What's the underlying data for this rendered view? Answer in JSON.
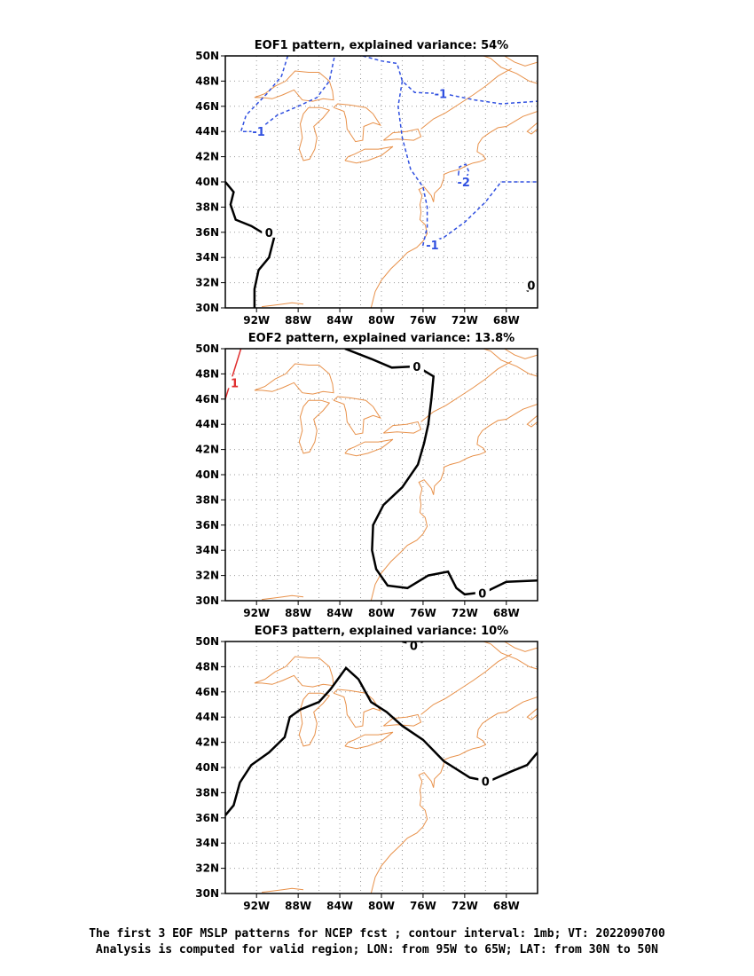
{
  "panels": [
    {
      "title": "EOF1 pattern, explained variance: 54%",
      "contour_labels": [
        {
          "text": "-1",
          "color": "#3050e0"
        },
        {
          "text": "-1",
          "color": "#3050e0"
        },
        {
          "text": "-2",
          "color": "#3050e0"
        },
        {
          "text": "-1",
          "color": "#3050e0"
        },
        {
          "text": "0",
          "color": "#000000"
        },
        {
          "text": "0",
          "color": "#000000"
        }
      ]
    },
    {
      "title": "EOF2 pattern, explained variance: 13.8%",
      "contour_labels": [
        {
          "text": "1",
          "color": "#e03030"
        },
        {
          "text": "0",
          "color": "#000000"
        },
        {
          "text": "0",
          "color": "#000000"
        }
      ]
    },
    {
      "title": "EOF3 pattern, explained variance: 10%",
      "contour_labels": [
        {
          "text": "0",
          "color": "#000000"
        },
        {
          "text": "0",
          "color": "#000000"
        }
      ]
    }
  ],
  "lat_ticks": [
    "50N",
    "48N",
    "46N",
    "44N",
    "42N",
    "40N",
    "38N",
    "36N",
    "34N",
    "32N",
    "30N"
  ],
  "lon_ticks": [
    "92W",
    "88W",
    "84W",
    "80W",
    "76W",
    "72W",
    "68W"
  ],
  "colors": {
    "coast": "#e8914a",
    "negative": "#3050e0",
    "positive": "#e03030",
    "zero": "#000000",
    "grid": "#999999"
  },
  "caption": {
    "line1": "The first 3 EOF MSLP patterns for NCEP fcst ; contour interval: 1mb; VT: 2022090700",
    "line2": "Analysis is computed for valid region; LON: from 95W to 65W; LAT: from 30N to 50N"
  }
}
